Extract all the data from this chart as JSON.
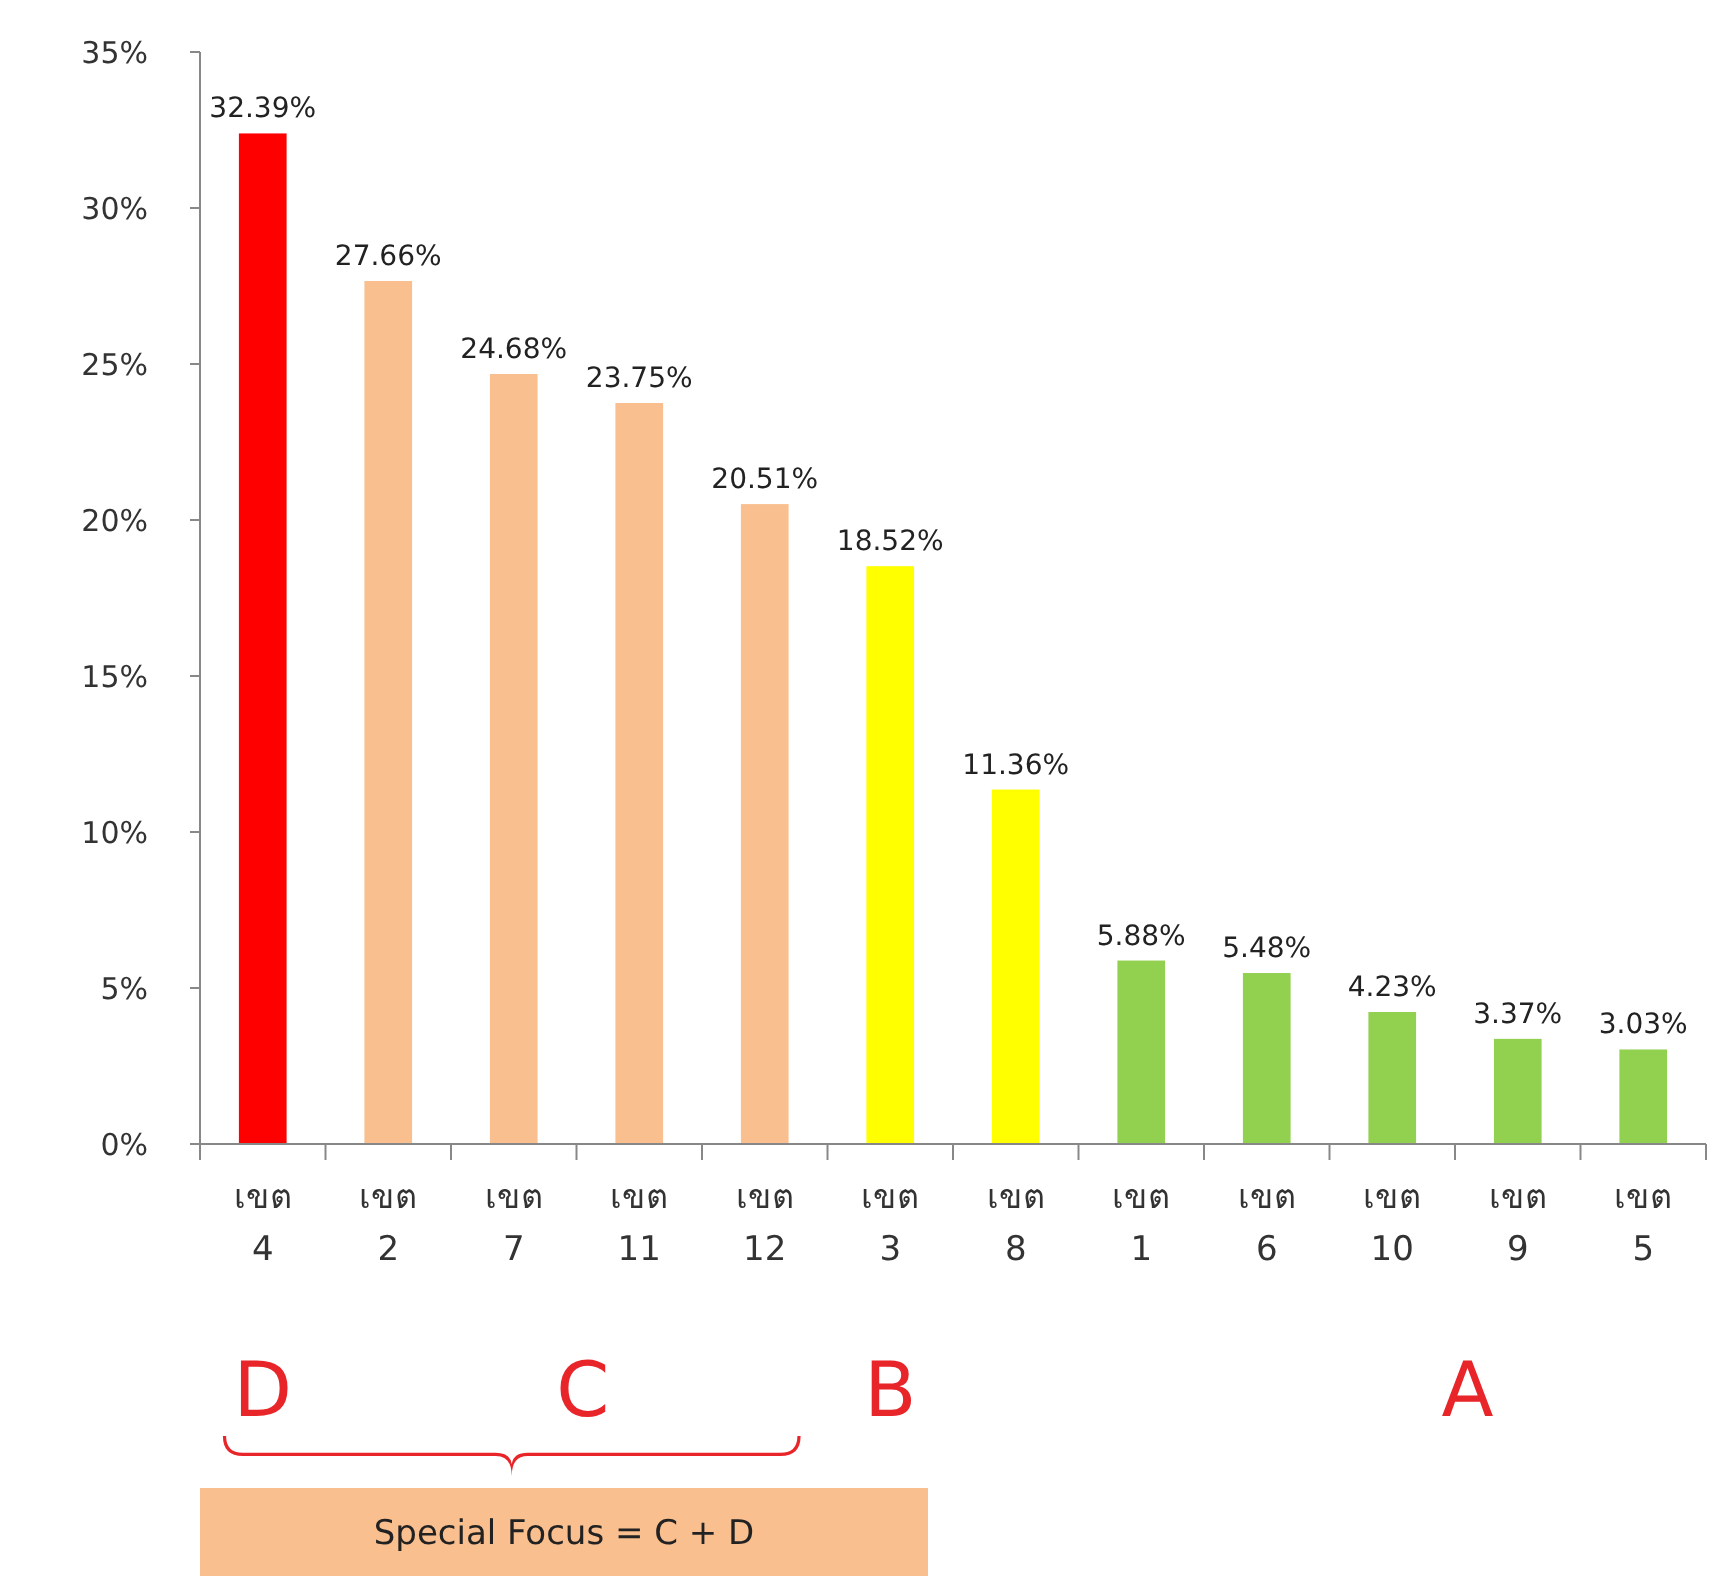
{
  "chart_data": {
    "type": "bar",
    "categories": [
      "เขต 4",
      "เขต 2",
      "เขต 7",
      "เขต 11",
      "เขต 12",
      "เขต 3",
      "เขต 8",
      "เขต 1",
      "เขต 6",
      "เขต 10",
      "เขต 9",
      "เขต 5"
    ],
    "values": [
      32.39,
      27.66,
      24.68,
      23.75,
      20.51,
      18.52,
      11.36,
      5.88,
      5.48,
      4.23,
      3.37,
      3.03
    ],
    "colors": [
      "#ff0000",
      "#f9bf8f",
      "#f9bf8f",
      "#f9bf8f",
      "#f9bf8f",
      "#ffff00",
      "#ffff00",
      "#92d050",
      "#92d050",
      "#92d050",
      "#92d050",
      "#92d050"
    ],
    "value_labels": [
      "32.39%",
      "27.66%",
      "24.68%",
      "23.75%",
      "20.51%",
      "18.52%",
      "11.36%",
      "5.88%",
      "5.48%",
      "4.23%",
      "3.37%",
      "3.03%"
    ],
    "ylim": [
      0,
      35
    ],
    "yticks": [
      {
        "value": 0,
        "label": "0%"
      },
      {
        "value": 5,
        "label": "5%"
      },
      {
        "value": 10,
        "label": "10%"
      },
      {
        "value": 15,
        "label": "15%"
      },
      {
        "value": 20,
        "label": "20%"
      },
      {
        "value": 25,
        "label": "25%"
      },
      {
        "value": 30,
        "label": "30%"
      },
      {
        "value": 35,
        "label": "35%"
      }
    ],
    "grid": false,
    "annotations": [
      "D",
      "C",
      "B",
      "A",
      "Special Focus = C + D"
    ]
  }
}
